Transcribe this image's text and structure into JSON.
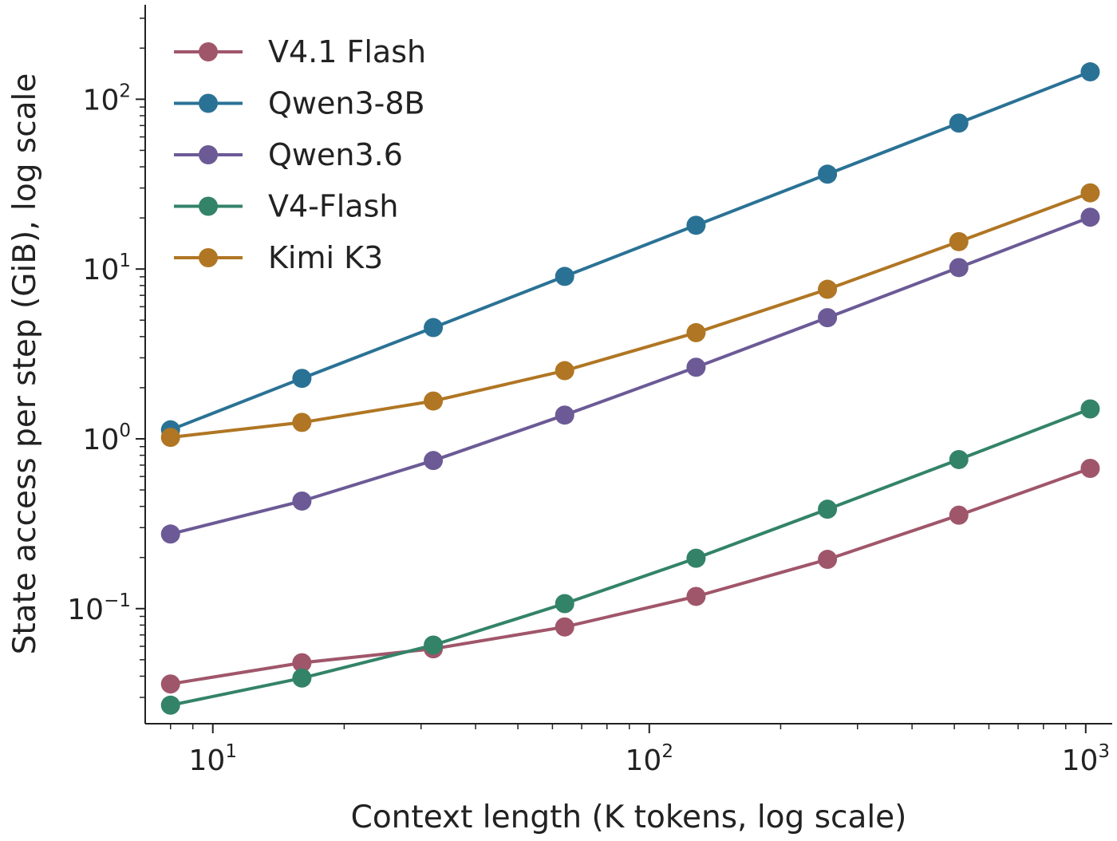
{
  "chart_data": {
    "type": "line",
    "xlabel": "Context length (K tokens, log scale)",
    "ylabel": "State access per step (GiB), log scale",
    "xscale": "log",
    "yscale": "log",
    "xlim": [
      7,
      1150
    ],
    "ylim": [
      0.021,
      360
    ],
    "grid": false,
    "legend_position": "top-left",
    "x": [
      8,
      16,
      32,
      64,
      128,
      256,
      512,
      1024
    ],
    "x_ticks": [
      {
        "value": 10,
        "base": "10",
        "exp": "1"
      },
      {
        "value": 100,
        "base": "10",
        "exp": "2"
      },
      {
        "value": 1000,
        "base": "10",
        "exp": "3"
      }
    ],
    "y_ticks": [
      {
        "value": 0.1,
        "base": "10",
        "exp": "−1"
      },
      {
        "value": 1,
        "base": "10",
        "exp": "0"
      },
      {
        "value": 10,
        "base": "10",
        "exp": "1"
      },
      {
        "value": 100,
        "base": "10",
        "exp": "2"
      }
    ],
    "series": [
      {
        "name": "V4.1 Flash",
        "color": "#a0566a",
        "values": [
          0.036,
          0.048,
          0.058,
          0.078,
          0.118,
          0.195,
          0.355,
          0.67
        ]
      },
      {
        "name": "Qwen3-8B",
        "color": "#2a7295",
        "values": [
          1.13,
          2.27,
          4.52,
          9.05,
          18.1,
          36.2,
          72.4,
          145
        ]
      },
      {
        "name": "Qwen3.6",
        "color": "#6b5a96",
        "values": [
          0.275,
          0.43,
          0.745,
          1.38,
          2.64,
          5.17,
          10.2,
          20.2
        ]
      },
      {
        "name": "V4-Flash",
        "color": "#338369",
        "values": [
          0.027,
          0.039,
          0.061,
          0.107,
          0.198,
          0.385,
          0.755,
          1.5
        ]
      },
      {
        "name": "Kimi K3",
        "color": "#b07623",
        "values": [
          1.02,
          1.25,
          1.67,
          2.52,
          4.22,
          7.6,
          14.5,
          28.1
        ]
      }
    ]
  }
}
